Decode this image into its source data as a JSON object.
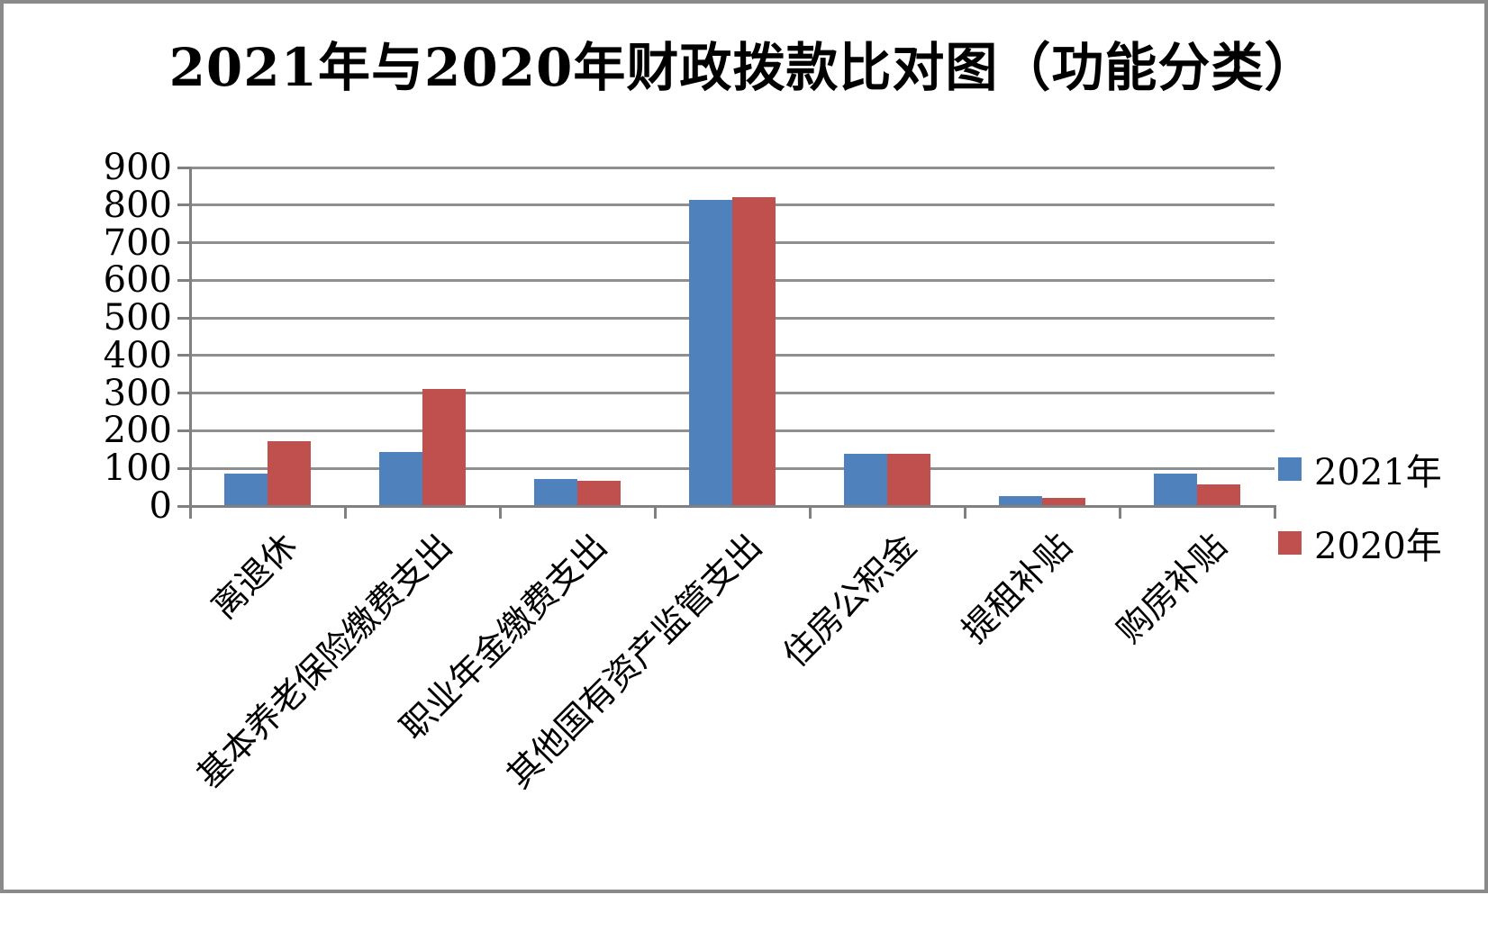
{
  "frame": {
    "border_color": "#8A8A8A",
    "background": "#FFFFFF"
  },
  "chart_data": {
    "type": "bar",
    "title": "2021年与2020年财政拨款比对图（功能分类）",
    "categories": [
      "离退休",
      "基本养老保险缴费支出",
      "职业年金缴费支出",
      "其他国有资产监管支出",
      "住房公积金",
      "提租补贴",
      "购房补贴"
    ],
    "series": [
      {
        "name": "2021年",
        "color": "#4F81BD",
        "values": [
          87,
          143,
          72,
          813,
          140,
          26,
          85
        ]
      },
      {
        "name": "2020年",
        "color": "#C0504D",
        "values": [
          173,
          312,
          68,
          822,
          140,
          21,
          57
        ]
      }
    ],
    "y_axis": {
      "min": 0,
      "max": 900,
      "step": 100,
      "tick_labels": [
        "0",
        "100",
        "200",
        "300",
        "400",
        "500",
        "600",
        "700",
        "800",
        "900"
      ]
    },
    "xlabel": "",
    "ylabel": "",
    "grid": true,
    "gridline_color": "#8F8F8F",
    "axis_color": "#808080",
    "legend_position": "right",
    "legend_labels": [
      "2021年",
      "2020年"
    ]
  }
}
